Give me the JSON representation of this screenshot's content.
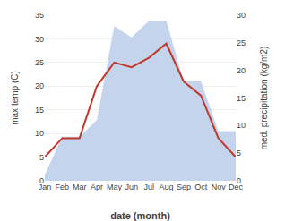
{
  "chart_data": {
    "type": "line",
    "categories": [
      "Jan",
      "Feb",
      "Mar",
      "Apr",
      "May",
      "Jun",
      "Jul",
      "Aug",
      "Sep",
      "Oct",
      "Nov",
      "Dec"
    ],
    "xlabel": "date (month)",
    "ylabel": "max temp (C)",
    "y2label": "med. precipitation (kg/m2)",
    "series": [
      {
        "type": "area",
        "axis": "y2",
        "color": "#c5d4ed",
        "values": [
          1,
          8,
          8,
          11,
          28,
          26,
          29,
          29,
          18,
          18,
          9,
          9
        ]
      },
      {
        "type": "line",
        "color": "#c0392b",
        "values": [
          5,
          9,
          9,
          20,
          25,
          24,
          26,
          29,
          21,
          18,
          9,
          5
        ]
      }
    ],
    "ylim": [
      0,
      35
    ],
    "yticks": [
      0,
      5,
      10,
      15,
      20,
      25,
      30,
      35
    ],
    "y2lim": [
      0,
      30
    ],
    "y2ticks": [
      0,
      5,
      10,
      15,
      20,
      25,
      30
    ],
    "grid": true
  }
}
